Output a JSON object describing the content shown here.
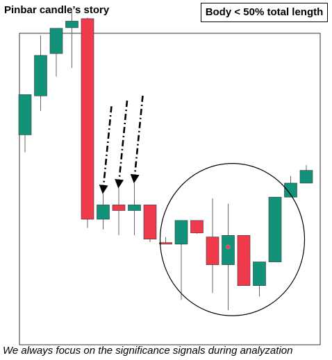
{
  "header": {
    "title": "Pinbar candle’s story",
    "badge": "Body < 50% total length"
  },
  "footer": {
    "caption": "We always focus on the significance signals during analyzation"
  },
  "colors": {
    "bull": "#129379",
    "bear": "#ef3a4c",
    "wick": "#666666",
    "frame": "#000000",
    "circle": "#000000",
    "arrow": "#000000"
  },
  "chart_data": {
    "type": "candlestick",
    "ylim": [
      0,
      100
    ],
    "grid": false,
    "candles": [
      {
        "open": 67.4,
        "high": 80.3,
        "low": 61.8,
        "close": 80.3
      },
      {
        "open": 79.9,
        "high": 99.3,
        "low": 75.1,
        "close": 92.9
      },
      {
        "open": 93.5,
        "high": 101.4,
        "low": 86.1,
        "close": 101.6
      },
      {
        "open": 101.8,
        "high": 107.2,
        "low": 88.9,
        "close": 103.9
      },
      {
        "open": 104.7,
        "high": 105.0,
        "low": 37.5,
        "close": 40.3
      },
      {
        "open": 40.3,
        "high": 48.5,
        "low": 37.0,
        "close": 44.9
      },
      {
        "open": 44.9,
        "high": 50.3,
        "low": 35.2,
        "close": 43.1
      },
      {
        "open": 43.1,
        "high": 51.9,
        "low": 35.2,
        "close": 44.9
      },
      {
        "open": 44.9,
        "high": 45.0,
        "low": 33.0,
        "close": 33.9
      },
      {
        "open": 32.8,
        "high": 34.6,
        "low": 32.3,
        "close": 32.3
      },
      {
        "open": 32.3,
        "high": 39.9,
        "low": 14.4,
        "close": 39.9
      },
      {
        "open": 39.9,
        "high": 39.9,
        "low": 35.7,
        "close": 35.9
      },
      {
        "open": 34.6,
        "high": 47.0,
        "low": 16.6,
        "close": 25.7
      },
      {
        "open": 25.7,
        "high": 45.3,
        "low": 11.1,
        "close": 35.1
      },
      {
        "open": 35.1,
        "high": 35.1,
        "low": 19.0,
        "close": 19.0
      },
      {
        "open": 19.0,
        "high": 26.6,
        "low": 15.5,
        "close": 26.6
      },
      {
        "open": 26.6,
        "high": 47.4,
        "low": 26.6,
        "close": 47.4
      },
      {
        "open": 47.4,
        "high": 54.2,
        "low": 47.4,
        "close": 51.9
      },
      {
        "open": 51.9,
        "high": 57.7,
        "low": 51.9,
        "close": 56.0
      }
    ],
    "annotations": [
      {
        "type": "arrow",
        "target_candle": 5
      },
      {
        "type": "arrow",
        "target_candle": 6
      },
      {
        "type": "arrow",
        "target_candle": 7
      },
      {
        "type": "ellipse",
        "from_candle": 9,
        "to_candle": 17
      },
      {
        "type": "marker-dot",
        "candle": 13,
        "value": 31.4
      }
    ]
  }
}
